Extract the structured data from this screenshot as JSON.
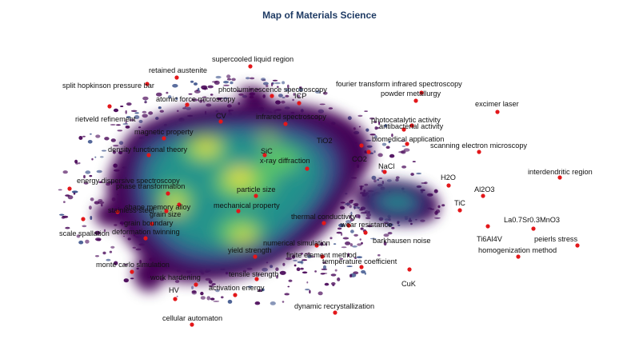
{
  "title": "Map of Materials Science",
  "colors": {
    "point": "#e3171a",
    "density_low": "#440154",
    "density_mid1": "#3b528b",
    "density_mid2": "#21918c",
    "density_mid3": "#5ec962",
    "density_high": "#fde725",
    "title": "#1f3b64"
  },
  "terms": [
    "supercooled liquid region",
    "retained austenite",
    "split hopkinson pressure bar",
    "photoluminescence spectroscopy",
    "fourier transform infrared spectroscopy",
    "atomic force microscopy",
    "ICP",
    "powder metallurgy",
    "excimer laser",
    "rietveld refinement",
    "CV",
    "infrared spectroscopy",
    "photocatalytic activity",
    "antibacterial activity",
    "magnetic property",
    "biomedical application",
    "TiO2",
    "scanning electron microscopy",
    "density functional theory",
    "SiC",
    "CO2",
    "x-ray diffraction",
    "NaCl",
    "interdendritic region",
    "energy dispersive spectroscopy",
    "H2O",
    "phase transformation",
    "Al2O3",
    "particle size",
    "shape memory alloy",
    "TiC",
    "stainless steel",
    "grain size",
    "mechanical property",
    "thermal conductivity",
    "grain boundary",
    "La0.7Sr0.3MnO3",
    "wear resistance",
    "scale spallation",
    "deformation twinning",
    "barkhausen noise",
    "Ti6Al4V",
    "peierls stress",
    "numerical simulation",
    "yield strength",
    "finite element method",
    "homogenization method",
    "temperature coefficient",
    "monte carlo simulation",
    "tensile strength",
    "work hardening",
    "CuK",
    "activation energy",
    "HV",
    "dynamic recrystallization",
    "cellular automaton"
  ]
}
